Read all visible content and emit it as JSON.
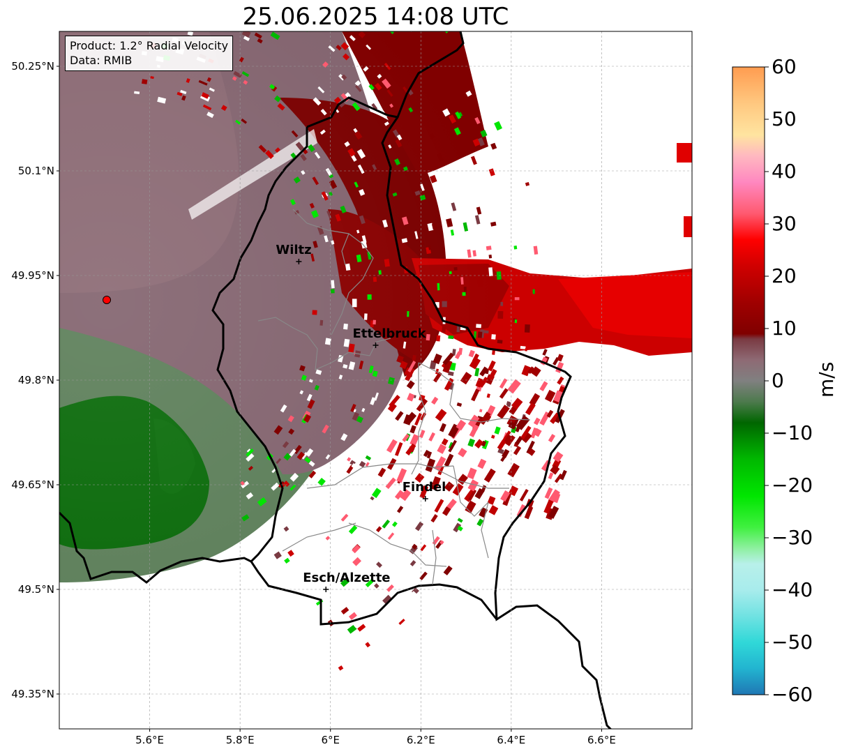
{
  "title": "25.06.2025 14:08 UTC",
  "info": {
    "product": "Product: 1.2° Radial Velocity",
    "data": "Data: RMIB"
  },
  "axes": {
    "lon_range": [
      5.4,
      6.8
    ],
    "lat_range": [
      49.3,
      50.3
    ],
    "x_ticks": [
      {
        "value": 5.6,
        "label": "5.6°E"
      },
      {
        "value": 5.8,
        "label": "5.8°E"
      },
      {
        "value": 6.0,
        "label": "6°E"
      },
      {
        "value": 6.2,
        "label": "6.2°E"
      },
      {
        "value": 6.4,
        "label": "6.4°E"
      },
      {
        "value": 6.6,
        "label": "6.6°E"
      }
    ],
    "y_ticks": [
      {
        "value": 50.25,
        "label": "50.25°N"
      },
      {
        "value": 50.1,
        "label": "50.1°N"
      },
      {
        "value": 49.95,
        "label": "49.95°N"
      },
      {
        "value": 49.8,
        "label": "49.8°N"
      },
      {
        "value": 49.65,
        "label": "49.65°N"
      },
      {
        "value": 49.5,
        "label": "49.5°N"
      },
      {
        "value": 49.35,
        "label": "49.35°N"
      }
    ],
    "grid": true
  },
  "cities": [
    {
      "name": "Wiltz",
      "lon": 5.93,
      "lat": 49.97
    },
    {
      "name": "Ettelbruck",
      "lon": 6.1,
      "lat": 49.85
    },
    {
      "name": "Findel",
      "lon": 6.21,
      "lat": 49.63
    },
    {
      "name": "Esch/Alzette",
      "lon": 5.99,
      "lat": 49.5
    }
  ],
  "radar_site": {
    "lon": 5.505,
    "lat": 49.915,
    "color": "#ff0000"
  },
  "colorbar": {
    "label": "m/s",
    "min": -60,
    "max": 60,
    "ticks": [
      {
        "value": 60,
        "label": "60"
      },
      {
        "value": 50,
        "label": "50"
      },
      {
        "value": 40,
        "label": "40"
      },
      {
        "value": 30,
        "label": "30"
      },
      {
        "value": 20,
        "label": "20"
      },
      {
        "value": 10,
        "label": "10"
      },
      {
        "value": 0,
        "label": "0"
      },
      {
        "value": -10,
        "label": "−10"
      },
      {
        "value": -20,
        "label": "−20"
      },
      {
        "value": -30,
        "label": "−30"
      },
      {
        "value": -40,
        "label": "−40"
      },
      {
        "value": -50,
        "label": "−50"
      },
      {
        "value": -60,
        "label": "−60"
      }
    ],
    "stops": [
      {
        "value": -60,
        "color": "#1f77b4"
      },
      {
        "value": -55,
        "color": "#22b4d0"
      },
      {
        "value": -50,
        "color": "#30d8d8"
      },
      {
        "value": -45,
        "color": "#70e2e2"
      },
      {
        "value": -40,
        "color": "#a8ecec"
      },
      {
        "value": -35,
        "color": "#b8f0ea"
      },
      {
        "value": -32,
        "color": "#8ef0a0"
      },
      {
        "value": -28,
        "color": "#40f040"
      },
      {
        "value": -22,
        "color": "#00e600"
      },
      {
        "value": -15,
        "color": "#00b800"
      },
      {
        "value": -8,
        "color": "#006600"
      },
      {
        "value": -4,
        "color": "#4d7a4d"
      },
      {
        "value": 0,
        "color": "#808080"
      },
      {
        "value": 4,
        "color": "#8e6a74"
      },
      {
        "value": 8,
        "color": "#7a3a42"
      },
      {
        "value": 9,
        "color": "#800000"
      },
      {
        "value": 15,
        "color": "#a00000"
      },
      {
        "value": 22,
        "color": "#d00000"
      },
      {
        "value": 27,
        "color": "#ff0000"
      },
      {
        "value": 32,
        "color": "#ff5a70"
      },
      {
        "value": 38,
        "color": "#ff88c0"
      },
      {
        "value": 43,
        "color": "#ffb8c0"
      },
      {
        "value": 47,
        "color": "#ffe4a0"
      },
      {
        "value": 53,
        "color": "#ffc880"
      },
      {
        "value": 60,
        "color": "#ff9c50"
      }
    ]
  }
}
